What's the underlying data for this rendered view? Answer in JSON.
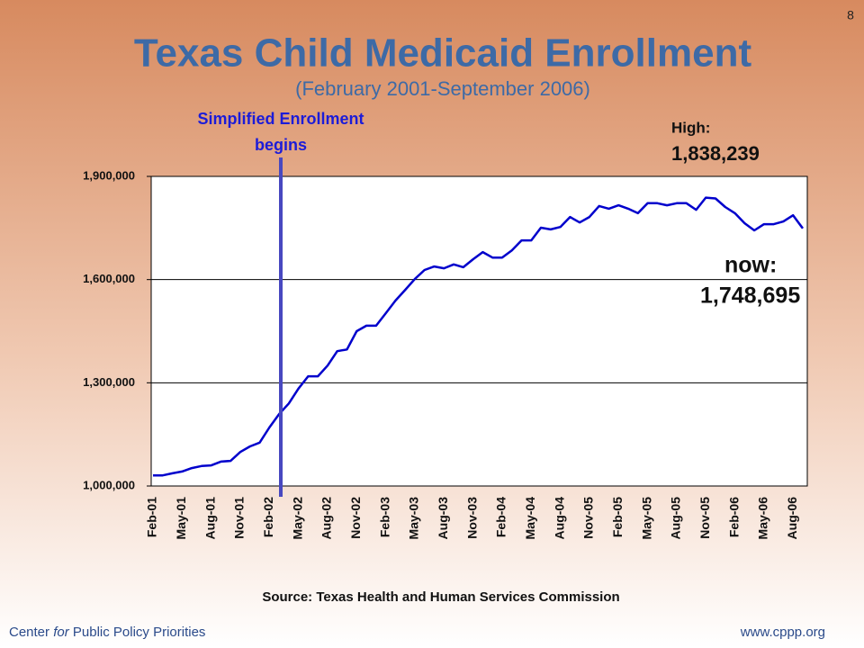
{
  "page_number": "8",
  "source": "Source: Texas Health and Human Services Commission",
  "footer": {
    "left": [
      "Center",
      "for",
      "Public Policy Priorities"
    ],
    "right": "www.cppp.org"
  },
  "chart_data": {
    "type": "line",
    "title": "Texas Child Medicaid Enrollment",
    "subtitle": "(February 2001-September 2006)",
    "annotations": {
      "event": [
        "Simplified Enrollment",
        "begins"
      ],
      "high": [
        "High:",
        "1,838,239"
      ],
      "now": [
        "now:",
        "1,748,695"
      ]
    },
    "categories": [
      "Feb-01",
      null,
      null,
      "May-01",
      null,
      null,
      "Aug-01",
      null,
      null,
      "Nov-01",
      null,
      null,
      "Feb-02",
      null,
      null,
      "May-02",
      null,
      null,
      "Aug-02",
      null,
      null,
      "Nov-02",
      null,
      null,
      "Feb-03",
      null,
      null,
      "May-03",
      null,
      null,
      "Aug-03",
      null,
      null,
      "Nov-03",
      null,
      null,
      "Feb-04",
      null,
      null,
      "May-04",
      null,
      null,
      "Aug-04",
      null,
      null,
      "Nov-05",
      null,
      null,
      "Feb-05",
      null,
      null,
      "May-05",
      null,
      null,
      "Aug-05",
      null,
      null,
      "Nov-05",
      null,
      null,
      "Feb-06",
      null,
      null,
      "May-06",
      null,
      null,
      "Aug-06",
      null
    ],
    "values": [
      1031000,
      1031000,
      1037000,
      1042000,
      1052000,
      1058000,
      1060000,
      1071000,
      1073000,
      1099000,
      1115000,
      1126000,
      1170000,
      1209000,
      1240000,
      1283000,
      1319000,
      1319000,
      1350000,
      1392000,
      1397000,
      1450000,
      1466000,
      1466000,
      1502000,
      1539000,
      1570000,
      1602000,
      1628000,
      1638000,
      1633000,
      1644000,
      1636000,
      1659000,
      1680000,
      1664000,
      1664000,
      1685000,
      1714000,
      1714000,
      1751000,
      1746000,
      1753000,
      1782000,
      1766000,
      1782000,
      1814000,
      1806000,
      1816000,
      1806000,
      1793000,
      1822000,
      1822000,
      1816000,
      1822000,
      1822000,
      1803000,
      1838239,
      1836000,
      1811000,
      1793000,
      1764000,
      1743000,
      1761000,
      1761000,
      1769000,
      1787000,
      1748695
    ],
    "color": "#0000cc",
    "ylim": [
      1000000,
      1900000
    ],
    "yticks": [
      {
        "value": 1000000,
        "label": "1,000,000"
      },
      {
        "value": 1300000,
        "label": "1,300,000"
      },
      {
        "value": 1600000,
        "label": "1,600,000"
      },
      {
        "value": 1900000,
        "label": "1,900,000"
      }
    ],
    "grid": true
  }
}
